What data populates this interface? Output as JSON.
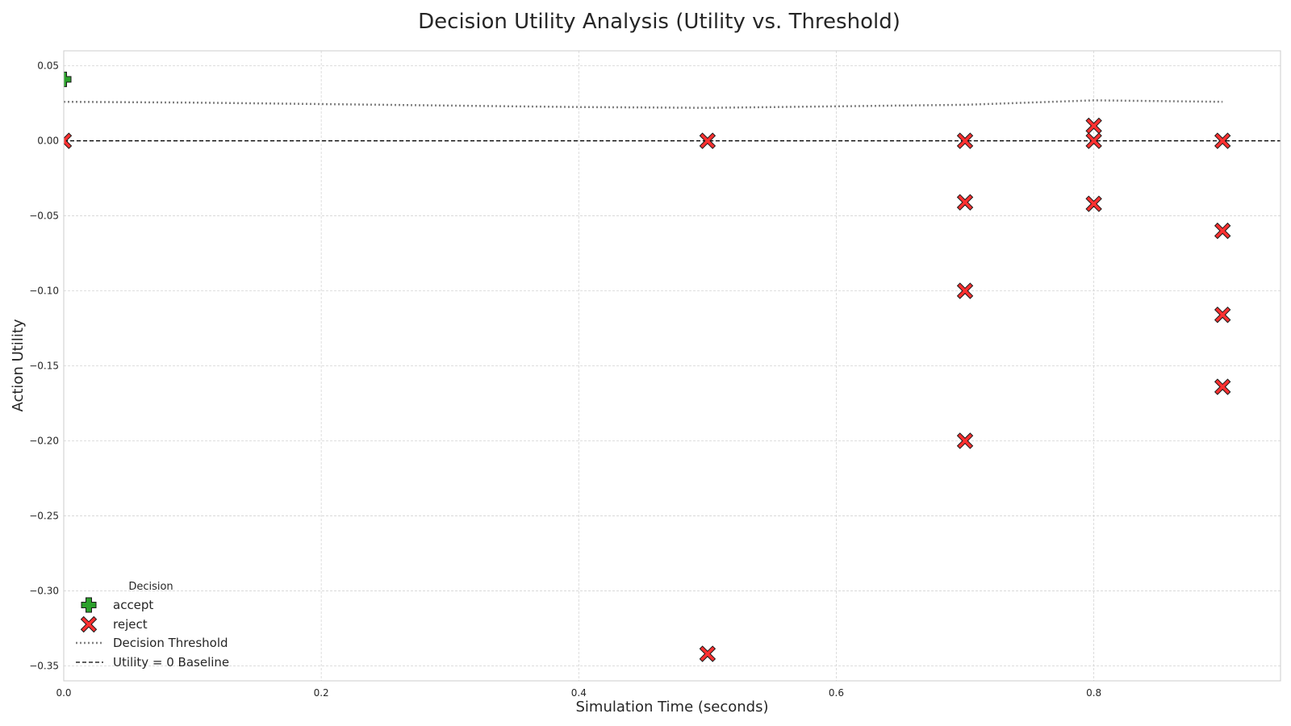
{
  "chart_data": {
    "type": "scatter",
    "title": "Decision Utility Analysis (Utility vs. Threshold)",
    "xlabel": "Simulation Time (seconds)",
    "ylabel": "Action Utility",
    "xlim": [
      0.0,
      0.945
    ],
    "ylim": [
      -0.36,
      0.06
    ],
    "xticks": [
      0.0,
      0.2,
      0.4,
      0.6,
      0.8
    ],
    "xtick_labels": [
      "0.0",
      "0.2",
      "0.4",
      "0.6",
      "0.8"
    ],
    "yticks": [
      0.05,
      0.0,
      -0.05,
      -0.1,
      -0.15,
      -0.2,
      -0.25,
      -0.3,
      -0.35
    ],
    "ytick_labels": [
      "0.05",
      "0.00",
      "−0.05",
      "−0.10",
      "−0.15",
      "−0.20",
      "−0.25",
      "−0.30",
      "−0.35"
    ],
    "grid": true,
    "legend": {
      "title": "Decision",
      "location": "lower-left",
      "entries": [
        "accept",
        "reject",
        "Decision Threshold",
        "Utility = 0 Baseline"
      ]
    },
    "series": [
      {
        "name": "accept",
        "marker": "plus",
        "color": "#2ca02c",
        "points": [
          [
            0.0,
            0.041
          ]
        ]
      },
      {
        "name": "reject",
        "marker": "x",
        "color": "#ff3030",
        "points": [
          [
            0.0,
            0.0
          ],
          [
            0.5,
            0.0
          ],
          [
            0.5,
            -0.342
          ],
          [
            0.7,
            0.0
          ],
          [
            0.7,
            -0.041
          ],
          [
            0.7,
            -0.1
          ],
          [
            0.7,
            -0.2
          ],
          [
            0.8,
            0.01
          ],
          [
            0.8,
            0.0
          ],
          [
            0.8,
            -0.042
          ],
          [
            0.9,
            0.0
          ],
          [
            0.9,
            -0.06
          ],
          [
            0.9,
            -0.116
          ],
          [
            0.9,
            -0.164
          ]
        ]
      },
      {
        "name": "Decision Threshold",
        "type": "line",
        "style": "dotted",
        "color": "#808080",
        "points": [
          [
            0.0,
            0.026
          ],
          [
            0.1,
            0.0255
          ],
          [
            0.2,
            0.0245
          ],
          [
            0.3,
            0.0235
          ],
          [
            0.4,
            0.0225
          ],
          [
            0.5,
            0.022
          ],
          [
            0.6,
            0.023
          ],
          [
            0.7,
            0.024
          ],
          [
            0.8,
            0.027
          ],
          [
            0.9,
            0.026
          ]
        ]
      },
      {
        "name": "Utility = 0 Baseline",
        "type": "hline",
        "style": "dashed",
        "color": "#000000",
        "y": 0.0
      }
    ]
  }
}
